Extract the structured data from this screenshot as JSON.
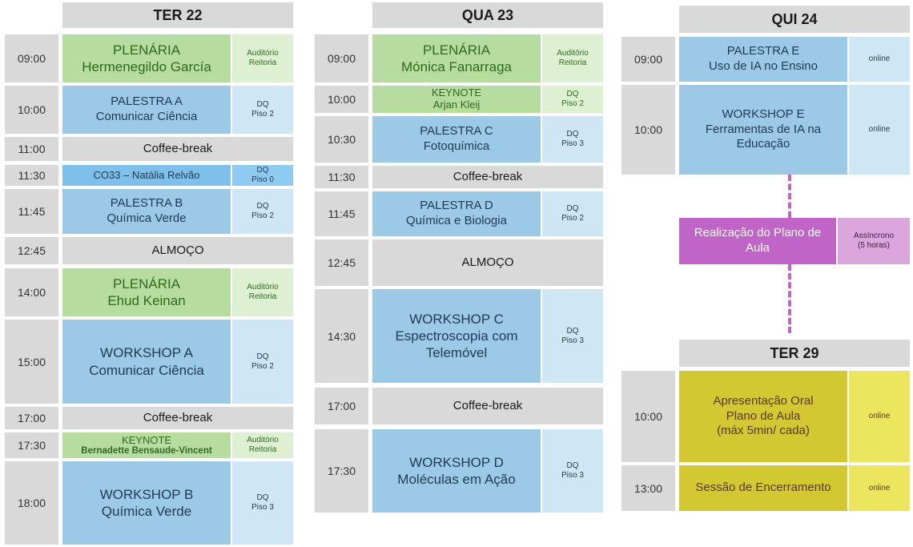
{
  "days": {
    "ter22": {
      "header": "TER 22",
      "rows": [
        {
          "time": "09:00",
          "title": "PLENÁRIA",
          "subtitle": "Hermenegildo García",
          "loc": [
            "Auditório",
            "Reitoria"
          ]
        },
        {
          "time": "10:00",
          "title": "PALESTRA A",
          "subtitle": "Comunicar Ciência",
          "loc": [
            "DQ",
            "Piso 2"
          ]
        },
        {
          "time": "11:00",
          "title": "Coffee-break"
        },
        {
          "time": "11:30",
          "title": "CO33 – Natália Relvão",
          "loc": [
            "DQ",
            "Piso 0"
          ]
        },
        {
          "time": "11:45",
          "title": "PALESTRA B",
          "subtitle": "Química Verde",
          "loc": [
            "DQ",
            "Piso 2"
          ]
        },
        {
          "time": "12:45",
          "title": "ALMOÇO"
        },
        {
          "time": "14:00",
          "title": "PLENÁRIA",
          "subtitle": "Ehud Keinan",
          "loc": [
            "Auditório",
            "Reitoria"
          ]
        },
        {
          "time": "15:00",
          "title": "WORKSHOP A",
          "subtitle": "Comunicar Ciência",
          "loc": [
            "DQ",
            "Piso 2"
          ]
        },
        {
          "time": "17:00",
          "title": "Coffee-break"
        },
        {
          "time": "17:30",
          "title": "KEYNOTE",
          "subtitle": "Bernadette Bensaude-Vincent",
          "loc": [
            "Auditório",
            "Reitoria"
          ]
        },
        {
          "time": "18:00",
          "title": "WORKSHOP B",
          "subtitle": "Química Verde",
          "loc": [
            "DQ",
            "Piso 3"
          ]
        }
      ]
    },
    "qua23": {
      "header": "QUA 23",
      "rows": [
        {
          "time": "09:00",
          "title": "PLENÁRIA",
          "subtitle": "Mónica Fanarraga",
          "loc": [
            "Auditório",
            "Reitoria"
          ]
        },
        {
          "time": "10:00",
          "title": "KEYNOTE",
          "subtitle": "Arjan Kleij",
          "loc": [
            "DQ",
            "Piso 2"
          ]
        },
        {
          "time": "10:30",
          "title": "PALESTRA C",
          "subtitle": "Fotoquímica",
          "loc": [
            "DQ",
            "Piso 3"
          ]
        },
        {
          "time": "11:30",
          "title": "Coffee-break"
        },
        {
          "time": "11:45",
          "title": "PALESTRA D",
          "subtitle": "Química e Biologia",
          "loc": [
            "DQ",
            "Piso 2"
          ]
        },
        {
          "time": "12:45",
          "title": "ALMOÇO"
        },
        {
          "time": "14:30",
          "title": "WORKSHOP C",
          "subtitle": "Espectroscopia com",
          "subtitle2": "Telemóvel",
          "loc": [
            "DQ",
            "Piso 3"
          ]
        },
        {
          "time": "17:00",
          "title": "Coffee-break"
        },
        {
          "time": "17:30",
          "title": "WORKSHOP D",
          "subtitle": "Moléculas em Ação",
          "loc": [
            "DQ",
            "Piso 3"
          ]
        }
      ]
    },
    "qui24": {
      "header": "QUI 24",
      "rows": [
        {
          "time": "09:00",
          "title": "PALESTRA E",
          "subtitle": "Uso de IA no Ensino",
          "loc": [
            "online"
          ]
        },
        {
          "time": "10:00",
          "title": "WORKSHOP E",
          "subtitle": "Ferramentas de IA na",
          "subtitle2": "Educação",
          "loc": [
            "online"
          ]
        }
      ]
    },
    "async": {
      "title": "Realização do Plano de",
      "title2": "Aula",
      "loc": [
        "Assíncrono",
        "(5 horas)"
      ]
    },
    "ter29": {
      "header": "TER 29",
      "rows": [
        {
          "time": "10:00",
          "title": "Apresentação Oral",
          "subtitle": "Plano de Aula",
          "subtitle2": "(máx 5min/ cada)",
          "loc": [
            "online"
          ]
        },
        {
          "time": "13:00",
          "title": "Sessão de Encerramento",
          "loc": [
            "online"
          ]
        }
      ]
    }
  },
  "colors": {
    "plenary": "#b7dca0",
    "talk": "#9bc9e6",
    "break": "#d9d9d9",
    "async": "#c064c8",
    "closing": "#d1c832"
  }
}
